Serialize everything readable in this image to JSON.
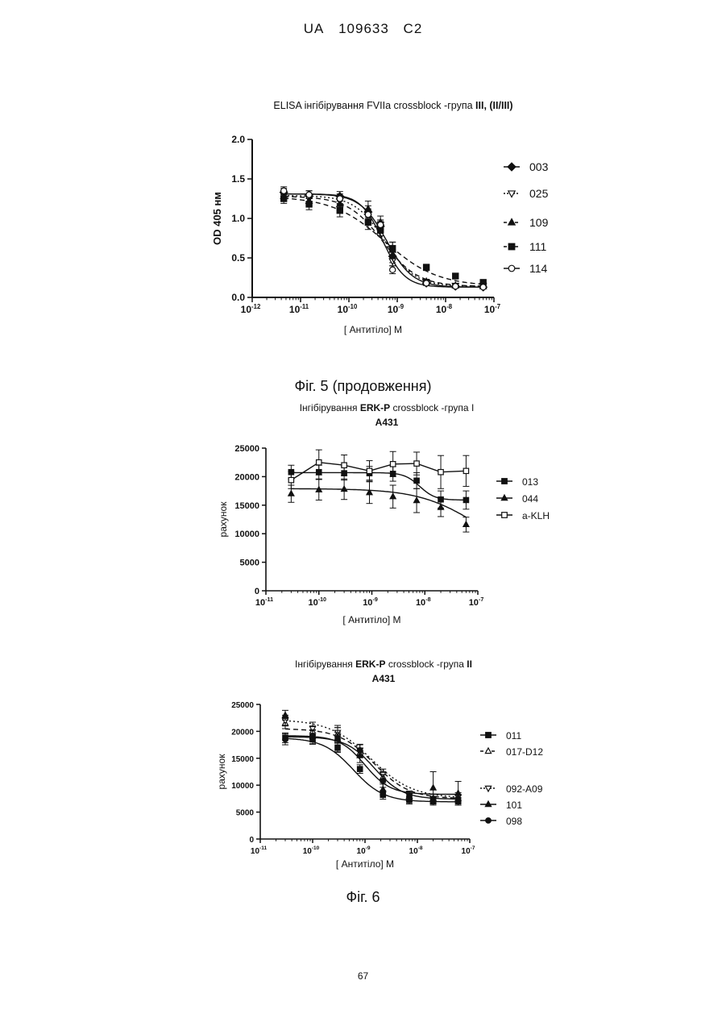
{
  "header": {
    "country": "UA",
    "number": "109633",
    "kind": "C2"
  },
  "fig5_caption": "Фіг. 5 (продовження)",
  "fig6_caption": "Фіг. 6",
  "page_number": "67",
  "chart_data": [
    {
      "type": "line",
      "title_parts": [
        {
          "text": "ELISA ",
          "bold": false
        },
        {
          "text": "інгібірування ",
          "bold": false
        },
        {
          "text": "FVIIa ",
          "bold": false
        },
        {
          "text": "crossblock ",
          "bold": false
        },
        {
          "text": "-група ",
          "bold": false
        },
        {
          "text": "III, (II/III)",
          "bold": true
        }
      ],
      "subtitle": "",
      "xlabel": "[ Антитіло] М",
      "ylabel": "OD 405 нм",
      "x_scale": "log",
      "xlim": [
        1e-12,
        1e-07
      ],
      "ylim": [
        0,
        2.0
      ],
      "y_ticks": [
        0.0,
        0.5,
        1.0,
        1.5,
        2.0
      ],
      "y_tick_labels": [
        "0.0",
        "0.5",
        "1.0",
        "1.5",
        "2.0"
      ],
      "x_ticks": [
        1e-12,
        1e-11,
        1e-10,
        1e-09,
        1e-08,
        1e-07
      ],
      "x_tick_labels": [
        [
          "10",
          "-12"
        ],
        [
          "10",
          "-11"
        ],
        [
          "10",
          "-10"
        ],
        [
          "10",
          "-9"
        ],
        [
          "10",
          "-8"
        ],
        [
          "10",
          "-7"
        ]
      ],
      "legend_position": "right",
      "x": [
        4.5e-12,
        1.5e-11,
        6.5e-11,
        2.5e-10,
        4.5e-10,
        8e-10,
        4e-09,
        1.6e-08,
        6e-08
      ],
      "series": [
        {
          "name": "003",
          "marker": "diamond",
          "dash": "solid",
          "values": [
            1.33,
            1.3,
            1.28,
            1.08,
            0.9,
            0.52,
            0.18,
            0.14,
            0.13
          ],
          "error": [
            0.05,
            0.05,
            0.06,
            0.08,
            0.06,
            0.08,
            0.03,
            0.02,
            0.02
          ],
          "curve": {
            "top": 1.31,
            "bottom": 0.13,
            "ec50": 6e-10,
            "hill": 1.6
          }
        },
        {
          "name": "025",
          "marker": "tri-down-open",
          "dash": "dot",
          "values": [
            1.3,
            1.25,
            1.22,
            1.02,
            0.92,
            0.46,
            0.19,
            0.15,
            0.15
          ],
          "error": [
            0.05,
            0.06,
            0.06,
            0.07,
            0.06,
            0.06,
            0.03,
            0.02,
            0.02
          ],
          "curve": {
            "top": 1.29,
            "bottom": 0.14,
            "ec50": 5.5e-10,
            "hill": 1.4
          }
        },
        {
          "name": "109",
          "marker": "tri-up",
          "dash": "dash",
          "values": [
            1.28,
            1.22,
            1.18,
            1.12,
            0.95,
            0.6,
            0.2,
            0.15,
            0.14
          ],
          "error": [
            0.05,
            0.06,
            0.08,
            0.1,
            0.08,
            0.1,
            0.03,
            0.02,
            0.02
          ],
          "curve": {
            "top": 1.28,
            "bottom": 0.14,
            "ec50": 5e-10,
            "hill": 1.2
          }
        },
        {
          "name": "111",
          "marker": "square",
          "dash": "dash",
          "values": [
            1.25,
            1.18,
            1.1,
            0.95,
            0.85,
            0.62,
            0.38,
            0.27,
            0.19
          ],
          "error": [
            0.06,
            0.07,
            0.08,
            0.09,
            0.07,
            0.08,
            0.04,
            0.03,
            0.02
          ],
          "curve": {
            "top": 1.28,
            "bottom": 0.14,
            "ec50": 5.5e-10,
            "hill": 0.8
          }
        },
        {
          "name": "114",
          "marker": "circle-open",
          "dash": "solid",
          "values": [
            1.35,
            1.3,
            1.25,
            1.05,
            0.92,
            0.35,
            0.18,
            0.14,
            0.13
          ],
          "error": [
            0.05,
            0.05,
            0.06,
            0.07,
            0.06,
            0.05,
            0.02,
            0.02,
            0.02
          ],
          "curve": {
            "top": 1.31,
            "bottom": 0.13,
            "ec50": 5e-10,
            "hill": 1.9
          }
        }
      ]
    },
    {
      "type": "line",
      "title_parts": [
        {
          "text": "Інгібірування ",
          "bold": false
        },
        {
          "text": "ERK-P",
          "bold": true
        },
        {
          "text": "    crossblock ",
          "bold": false
        },
        {
          "text": "-група ",
          "bold": false
        },
        {
          "text": "I",
          "bold": false
        }
      ],
      "subtitle": "A431",
      "xlabel": "[ Антитіло] М",
      "ylabel": "рахунок",
      "x_scale": "log",
      "xlim": [
        1e-11,
        1e-07
      ],
      "ylim": [
        0,
        25000
      ],
      "y_ticks": [
        0,
        5000,
        10000,
        15000,
        20000,
        25000
      ],
      "y_tick_labels": [
        "0",
        "5000",
        "10000",
        "15000",
        "20000",
        "25000"
      ],
      "x_ticks": [
        1e-11,
        1e-10,
        1e-09,
        1e-08,
        1e-07
      ],
      "x_tick_labels": [
        [
          "10",
          "-11"
        ],
        [
          "10",
          "-10"
        ],
        [
          "10",
          "-9"
        ],
        [
          "10",
          "-8"
        ],
        [
          "10",
          "-7"
        ]
      ],
      "legend_position": "right",
      "x": [
        3e-11,
        1e-10,
        3e-10,
        9e-10,
        2.5e-09,
        7e-09,
        2e-08,
        6e-08
      ],
      "series": [
        {
          "name": "013",
          "marker": "square",
          "dash": "solid",
          "values": [
            20800,
            20800,
            20600,
            20600,
            20500,
            19300,
            16000,
            15900
          ],
          "error": [
            1200,
            1200,
            1200,
            1200,
            1300,
            1400,
            1500,
            1600
          ],
          "curve": {
            "top": 20700,
            "bottom": 15900,
            "ec50": 8e-09,
            "hill": 3
          }
        },
        {
          "name": "044",
          "marker": "tri-up",
          "dash": "solid",
          "values": [
            17000,
            17700,
            17800,
            17200,
            16500,
            15800,
            14600,
            11600
          ],
          "error": [
            1500,
            1800,
            1800,
            1900,
            2000,
            2100,
            1600,
            1300
          ],
          "curve": {
            "top": 17900,
            "bottom": 6000,
            "ec50": 9e-08,
            "hill": 0.8
          }
        },
        {
          "name": "a-KLH",
          "marker": "square-open",
          "dash": "solid",
          "values": [
            19400,
            22500,
            22000,
            21000,
            22200,
            22300,
            20800,
            21000
          ],
          "error": [
            1500,
            2200,
            1800,
            1800,
            2200,
            2000,
            2900,
            2700
          ],
          "curve": null
        }
      ]
    },
    {
      "type": "line",
      "title_parts": [
        {
          "text": "Інгібірування ",
          "bold": false
        },
        {
          "text": "ERK-P",
          "bold": true
        },
        {
          "text": "    crossblock ",
          "bold": false
        },
        {
          "text": "-група ",
          "bold": false
        },
        {
          "text": "II",
          "bold": true
        }
      ],
      "subtitle": "A431",
      "xlabel": "[ Антитіло] М",
      "ylabel": "рахунок",
      "x_scale": "log",
      "xlim": [
        1e-11,
        1e-07
      ],
      "ylim": [
        0,
        25000
      ],
      "y_ticks": [
        0,
        5000,
        10000,
        15000,
        20000,
        25000
      ],
      "y_tick_labels": [
        "0",
        "5000",
        "10000",
        "15000",
        "20000",
        "25000"
      ],
      "x_ticks": [
        1e-11,
        1e-10,
        1e-09,
        1e-08,
        1e-07
      ],
      "x_tick_labels": [
        [
          "10",
          "-11"
        ],
        [
          "10",
          "-10"
        ],
        [
          "10",
          "-9"
        ],
        [
          "10",
          "-8"
        ],
        [
          "10",
          "-7"
        ]
      ],
      "legend_position": "right",
      "x": [
        3e-11,
        1e-10,
        3e-10,
        8e-10,
        2.2e-09,
        7e-09,
        2e-08,
        6e-08
      ],
      "series": [
        {
          "name": "011",
          "marker": "square",
          "dash": "solid",
          "values": [
            18800,
            18500,
            17000,
            13000,
            8200,
            7200,
            7000,
            7000
          ],
          "error": [
            900,
            900,
            900,
            800,
            800,
            700,
            700,
            700
          ],
          "curve": {
            "top": 18800,
            "bottom": 6900,
            "ec50": 6e-10,
            "hill": 1.5
          }
        },
        {
          "name": "017-D12",
          "marker": "tri-up-open",
          "dash": "dash",
          "values": [
            21500,
            20000,
            19500,
            16000,
            11500,
            7800,
            7500,
            7500
          ],
          "error": [
            1000,
            1000,
            1200,
            900,
            1000,
            800,
            800,
            800
          ],
          "curve": {
            "top": 20500,
            "bottom": 7500,
            "ec50": 1.5e-09,
            "hill": 1.3
          }
        },
        {
          "name": "092-A09",
          "marker": "tri-down-open",
          "dash": "dot",
          "values": [
            22000,
            20500,
            19800,
            16500,
            12000,
            8000,
            7500,
            7800
          ],
          "error": [
            1000,
            1200,
            1300,
            1100,
            1000,
            900,
            800,
            800
          ],
          "curve": {
            "top": 22200,
            "bottom": 7600,
            "ec50": 1.3e-09,
            "hill": 1.1
          }
        },
        {
          "name": "101",
          "marker": "tri-up",
          "dash": "solid",
          "values": [
            23000,
            19000,
            18500,
            15500,
            9200,
            8000,
            9500,
            8500
          ],
          "error": [
            900,
            1300,
            2200,
            1300,
            1000,
            900,
            3000,
            2200
          ],
          "curve": {
            "top": 19200,
            "bottom": 8300,
            "ec50": 1e-09,
            "hill": 1.8
          }
        },
        {
          "name": "098",
          "marker": "circle",
          "dash": "solid",
          "values": [
            18500,
            19200,
            18800,
            16500,
            10800,
            8000,
            7500,
            7500
          ],
          "error": [
            1000,
            1000,
            1000,
            1000,
            1200,
            800,
            800,
            800
          ],
          "curve": {
            "top": 19000,
            "bottom": 7400,
            "ec50": 1.5e-09,
            "hill": 1.6
          }
        }
      ]
    }
  ]
}
